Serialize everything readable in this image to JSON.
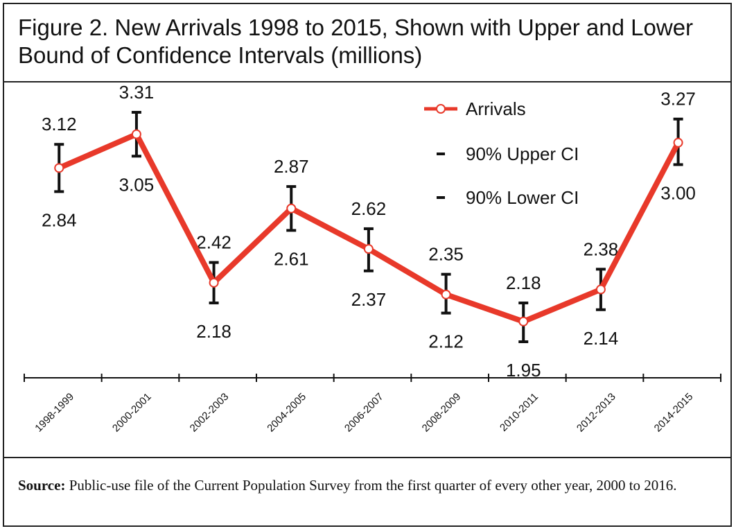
{
  "chart_data": {
    "type": "line",
    "title": "Figure 2. New Arrivals 1998 to 2015, Shown with Upper and Lower Bound of Confidence Intervals (millions)",
    "categories": [
      "1998-1999",
      "2000-2001",
      "2002-2003",
      "2004-2005",
      "2006-2007",
      "2008-2009",
      "2010-2011",
      "2012-2013",
      "2014-2015"
    ],
    "series": [
      {
        "name": "Arrivals",
        "color": "#e8392a",
        "values": [
          2.98,
          3.18,
          2.3,
          2.74,
          2.5,
          2.23,
          2.07,
          2.26,
          3.13
        ]
      },
      {
        "name": "90% Upper CI",
        "color": "#111111",
        "values": [
          3.12,
          3.31,
          2.42,
          2.87,
          2.62,
          2.35,
          2.18,
          2.38,
          3.27
        ],
        "value_labels": [
          "3.12",
          "3.31",
          "2.42",
          "2.87",
          "2.62",
          "2.35",
          "2.18",
          "2.38",
          "3.27"
        ]
      },
      {
        "name": "90% Lower CI",
        "color": "#111111",
        "values": [
          2.84,
          3.05,
          2.18,
          2.61,
          2.37,
          2.12,
          1.95,
          2.14,
          3.0
        ],
        "value_labels": [
          "2.84",
          "3.05",
          "2.18",
          "2.61",
          "2.37",
          "2.12",
          "1.95",
          "2.14",
          "3.00"
        ]
      }
    ],
    "legend": "top-right",
    "source_label": "Source:",
    "source_text": "Public-use file of the Current Population Survey from the first quarter of every other year, 2000 to 2016."
  }
}
